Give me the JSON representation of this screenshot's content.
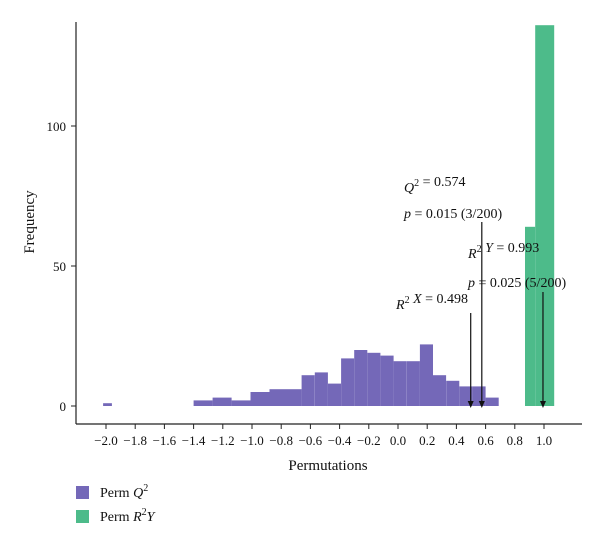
{
  "chart_data": {
    "type": "bar",
    "xlabel": "Permutations",
    "ylabel": "Frequency",
    "xlim": [
      -2.2,
      1.15
    ],
    "ylim": [
      0,
      137
    ],
    "x_ticks": [
      "−2.0",
      "−1.8",
      "−1.6",
      "−1.4",
      "−1.2",
      "−1.0",
      "−0.8",
      "−0.6",
      "−0.4",
      "−0.2",
      "0.0",
      "0.2",
      "0.4",
      "0.6",
      "0.8",
      "1.0"
    ],
    "y_ticks": [
      "0",
      "50",
      "100"
    ],
    "legend_position": "bottom-left",
    "series": [
      {
        "name": "Perm Q2",
        "legend_label": "Perm ",
        "legend_symbol": "Q",
        "legend_sup": "2",
        "color": "#7468b8",
        "bins": [
          {
            "x0": -2.02,
            "x1": -1.96,
            "value": 1
          },
          {
            "x0": -1.4,
            "x1": -1.27,
            "value": 2
          },
          {
            "x0": -1.27,
            "x1": -1.14,
            "value": 3
          },
          {
            "x0": -1.14,
            "x1": -1.01,
            "value": 2
          },
          {
            "x0": -1.01,
            "x1": -0.88,
            "value": 5
          },
          {
            "x0": -0.88,
            "x1": -0.75,
            "value": 6
          },
          {
            "x0": -0.75,
            "x1": -0.66,
            "value": 6
          },
          {
            "x0": -0.66,
            "x1": -0.57,
            "value": 11
          },
          {
            "x0": -0.57,
            "x1": -0.48,
            "value": 12
          },
          {
            "x0": -0.48,
            "x1": -0.39,
            "value": 8
          },
          {
            "x0": -0.39,
            "x1": -0.3,
            "value": 17
          },
          {
            "x0": -0.3,
            "x1": -0.21,
            "value": 20
          },
          {
            "x0": -0.21,
            "x1": -0.12,
            "value": 19
          },
          {
            "x0": -0.12,
            "x1": -0.03,
            "value": 18
          },
          {
            "x0": -0.03,
            "x1": 0.06,
            "value": 16
          },
          {
            "x0": 0.06,
            "x1": 0.15,
            "value": 16
          },
          {
            "x0": 0.15,
            "x1": 0.24,
            "value": 22
          },
          {
            "x0": 0.24,
            "x1": 0.33,
            "value": 11
          },
          {
            "x0": 0.33,
            "x1": 0.42,
            "value": 9
          },
          {
            "x0": 0.42,
            "x1": 0.51,
            "value": 7
          },
          {
            "x0": 0.51,
            "x1": 0.6,
            "value": 7
          },
          {
            "x0": 0.6,
            "x1": 0.69,
            "value": 3
          }
        ]
      },
      {
        "name": "Perm R2Y",
        "legend_label": "Perm ",
        "legend_symbol": "R",
        "legend_sup": "2",
        "legend_symbol2": "Y",
        "color": "#4dbb8a",
        "bins": [
          {
            "x0": 0.87,
            "x1": 0.94,
            "value": 64
          },
          {
            "x0": 0.94,
            "x1": 1.07,
            "value": 136
          }
        ]
      }
    ],
    "annotations": [
      {
        "id": "q2",
        "line1": {
          "sym": "Q",
          "sup": "2",
          "rest": " = 0.574"
        },
        "line2": {
          "sym": "p",
          "rest": " = 0.015 (3/200)"
        },
        "x": 0.574
      },
      {
        "id": "r2y",
        "line1": {
          "sym": "R",
          "sup": "2",
          "sym2": " Y",
          "rest": " = 0.993"
        },
        "line2": {
          "sym": "p",
          "rest": " = 0.025 (5/200)"
        },
        "x": 0.993
      },
      {
        "id": "r2x",
        "line1": {
          "sym": "R",
          "sup": "2",
          "sym2": " X",
          "rest": " = 0.498"
        },
        "x": 0.498
      }
    ]
  }
}
